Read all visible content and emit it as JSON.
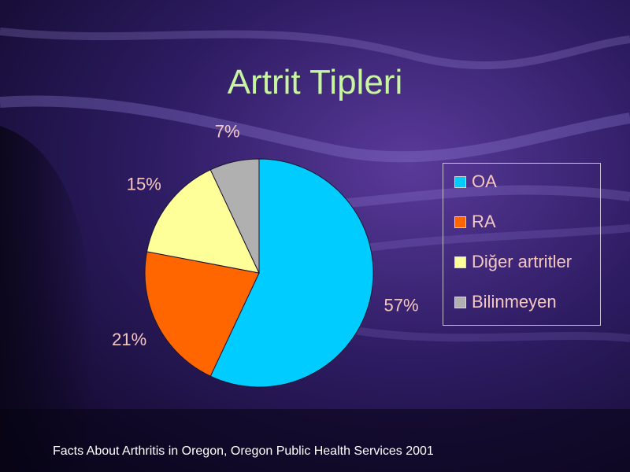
{
  "slide": {
    "title": "Artrit Tipleri",
    "source": "Facts About Arthritis in Oregon, Oregon Public Health Services 2001"
  },
  "colors": {
    "background": "#1a0f3a",
    "title": "#c8f5a0",
    "labels": "#f4c7c0"
  },
  "chart_data": {
    "type": "pie",
    "title": "",
    "categories": [
      "OA",
      "RA",
      "Diğer artritler",
      "Bilinmeyen"
    ],
    "values": [
      57,
      21,
      15,
      7
    ],
    "labels": [
      "57%",
      "21%",
      "15%",
      "7%"
    ],
    "colors": [
      "#00ccff",
      "#ff6600",
      "#ffff99",
      "#b0b0b0"
    ],
    "legend": "right"
  }
}
